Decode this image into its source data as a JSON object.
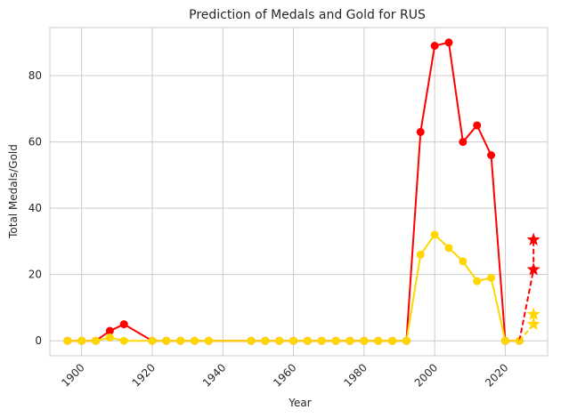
{
  "chart_data": {
    "type": "line",
    "title": "Prediction of Medals and Gold for RUS",
    "xlabel": "Year",
    "ylabel": "Total Medals/Gold",
    "xlim": [
      1891,
      2032
    ],
    "ylim": [
      -4.5,
      94.5
    ],
    "xticks": [
      1900,
      1920,
      1940,
      1960,
      1980,
      2000,
      2020
    ],
    "yticks": [
      0,
      20,
      40,
      60,
      80
    ],
    "grid": true,
    "series": [
      {
        "color": "#ff0000",
        "marker": "circle",
        "x": [
          1896,
          1900,
          1904,
          1908,
          1912,
          1920,
          1924,
          1928,
          1932,
          1936,
          1948,
          1952,
          1956,
          1960,
          1964,
          1968,
          1972,
          1976,
          1980,
          1984,
          1988,
          1992,
          1996,
          2000,
          2004,
          2008,
          2012,
          2016,
          2020,
          2024
        ],
        "y": [
          0,
          0,
          0,
          3,
          5,
          0,
          0,
          0,
          0,
          0,
          0,
          0,
          0,
          0,
          0,
          0,
          0,
          0,
          0,
          0,
          0,
          0,
          63,
          89,
          90,
          60,
          65,
          56,
          0,
          0
        ]
      },
      {
        "color": "#ffd700",
        "marker": "circle",
        "x": [
          1896,
          1900,
          1904,
          1908,
          1912,
          1920,
          1924,
          1928,
          1932,
          1936,
          1948,
          1952,
          1956,
          1960,
          1964,
          1968,
          1972,
          1976,
          1980,
          1984,
          1988,
          1992,
          1996,
          2000,
          2004,
          2008,
          2012,
          2016,
          2020,
          2024
        ],
        "y": [
          0,
          0,
          0,
          1,
          0,
          0,
          0,
          0,
          0,
          0,
          0,
          0,
          0,
          0,
          0,
          0,
          0,
          0,
          0,
          0,
          0,
          0,
          26,
          32,
          28,
          24,
          18,
          19,
          0,
          0
        ]
      }
    ],
    "predictions": [
      {
        "color": "#ff0000",
        "marker": "star",
        "dashed": true,
        "x": [
          2024,
          2028,
          2028
        ],
        "y": [
          0,
          21.5,
          30.5
        ]
      },
      {
        "color": "#ffd700",
        "marker": "star",
        "dashed": true,
        "x": [
          2024,
          2028,
          2028
        ],
        "y": [
          0,
          5,
          8
        ]
      }
    ]
  }
}
